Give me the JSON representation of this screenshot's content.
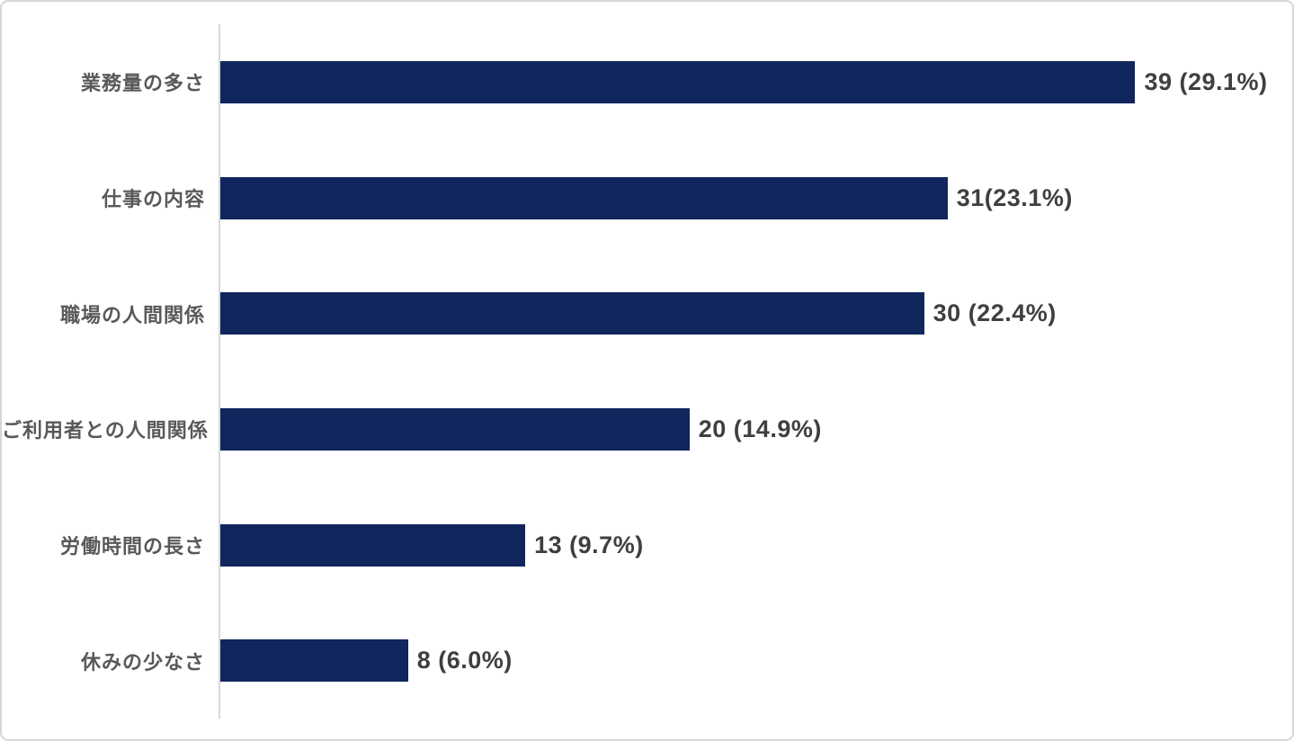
{
  "chart_data": {
    "type": "bar",
    "orientation": "horizontal",
    "title": "",
    "xlabel": "",
    "ylabel": "",
    "xlim": [
      0,
      45
    ],
    "grid": false,
    "legend": null,
    "bar_color": "#10265c",
    "axis_line_color": "#d9d9d9",
    "category_label_color": "#595959",
    "value_label_color": "#3f3f3f",
    "categories": [
      "業務量の多さ",
      "仕事の内容",
      "職場の人間関係",
      "ご利用者との人間関係",
      "労働時間の長さ",
      "休みの少なさ"
    ],
    "values": [
      39,
      31,
      30,
      20,
      13,
      8
    ],
    "percentages": [
      29.1,
      23.1,
      22.4,
      14.9,
      9.7,
      6.0
    ],
    "rows": [
      {
        "label": "業務量の多さ",
        "value": 39,
        "value_label": "39 (29.1%)"
      },
      {
        "label": "仕事の内容",
        "value": 31,
        "value_label": "31(23.1%)"
      },
      {
        "label": "職場の人間関係",
        "value": 30,
        "value_label": "30 (22.4%)"
      },
      {
        "label": "ご利用者との人間関係",
        "value": 20,
        "value_label": "20 (14.9%)"
      },
      {
        "label": "労働時間の長さ",
        "value": 13,
        "value_label": "13 (9.7%)"
      },
      {
        "label": "休みの少なさ",
        "value": 8,
        "value_label": "8 (6.0%)"
      }
    ]
  }
}
